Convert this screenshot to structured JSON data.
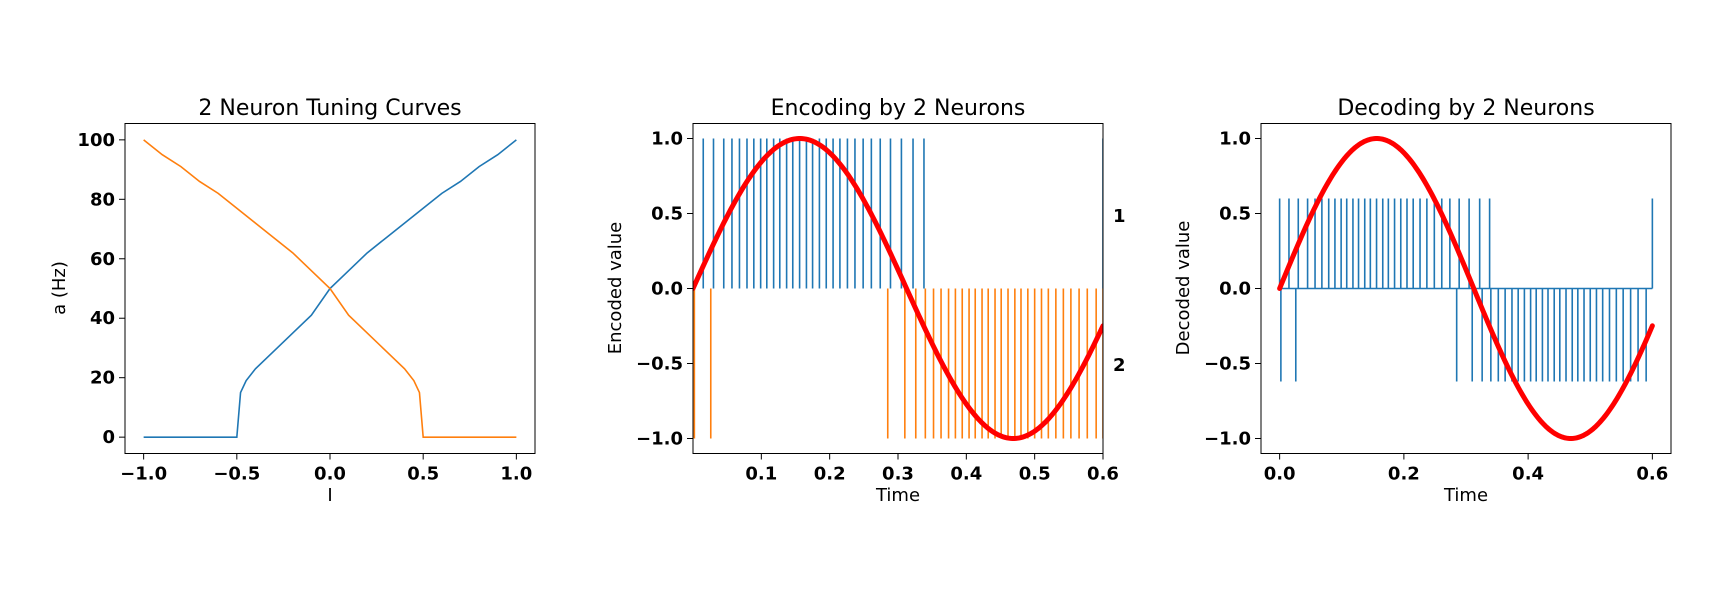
{
  "colors": {
    "neuron1": "#1f77b4",
    "neuron2": "#ff7f0e",
    "signal": "#ff0000"
  },
  "chart_data": [
    {
      "type": "line",
      "title": "2 Neuron Tuning Curves",
      "xlabel": "I",
      "ylabel": "a (Hz)",
      "xlim": [
        -1.1,
        1.1
      ],
      "ylim": [
        -5.5,
        105.5
      ],
      "xticks": [
        -1.0,
        -0.5,
        0.0,
        0.5,
        1.0
      ],
      "xtick_labels": [
        "−1.0",
        "−0.5",
        "0.0",
        "0.5",
        "1.0"
      ],
      "yticks": [
        0,
        20,
        40,
        60,
        80,
        100
      ],
      "ytick_labels": [
        "0",
        "20",
        "40",
        "60",
        "80",
        "100"
      ],
      "grid": false,
      "series": [
        {
          "color": "#1f77b4",
          "x": [
            -1.0,
            -0.5,
            -0.48,
            -0.45,
            -0.4,
            -0.3,
            -0.2,
            -0.1,
            0.0,
            0.1,
            0.2,
            0.3,
            0.4,
            0.5,
            0.6,
            0.7,
            0.8,
            0.9,
            1.0
          ],
          "y": [
            0,
            0,
            15,
            19,
            23,
            29,
            35,
            41,
            50,
            56,
            62,
            67,
            72,
            77,
            82,
            86,
            91,
            95,
            100
          ]
        },
        {
          "color": "#ff7f0e",
          "x": [
            -1.0,
            -0.9,
            -0.8,
            -0.7,
            -0.6,
            -0.5,
            -0.4,
            -0.3,
            -0.2,
            -0.1,
            0.0,
            0.1,
            0.2,
            0.3,
            0.4,
            0.45,
            0.48,
            0.5,
            1.0
          ],
          "y": [
            100,
            95,
            91,
            86,
            82,
            77,
            72,
            67,
            62,
            56,
            50,
            41,
            35,
            29,
            23,
            19,
            15,
            0,
            0
          ]
        }
      ]
    },
    {
      "type": "line",
      "title": "Encoding by 2 Neurons",
      "xlabel": "Time",
      "ylabel": "Encoded value",
      "xlim": [
        0.0,
        0.6
      ],
      "ylim": [
        -1.1,
        1.1
      ],
      "xticks": [
        0.1,
        0.2,
        0.3,
        0.4,
        0.5,
        0.6
      ],
      "xtick_labels": [
        "0.1",
        "0.2",
        "0.3",
        "0.4",
        "0.5",
        "0.6"
      ],
      "yticks": [
        -1.0,
        -0.5,
        0.0,
        0.5,
        1.0
      ],
      "ytick_labels": [
        "−1.0",
        "−0.5",
        "0.0",
        "0.5",
        "1.0"
      ],
      "right_labels": [
        {
          "text": "1",
          "y": 0.5
        },
        {
          "text": "2",
          "y": -0.5
        }
      ],
      "grid": false,
      "signal": {
        "color": "#ff0000",
        "function": "sin",
        "frequency_hz": 1.6,
        "amplitude": 1.0
      },
      "spikes": [
        {
          "color": "#1f77b4",
          "y_from": 0.0,
          "y_to": 1.0,
          "times": [
            0.015,
            0.03,
            0.045,
            0.057,
            0.068,
            0.079,
            0.089,
            0.099,
            0.108,
            0.118,
            0.127,
            0.137,
            0.146,
            0.156,
            0.166,
            0.175,
            0.185,
            0.195,
            0.205,
            0.215,
            0.226,
            0.237,
            0.249,
            0.261,
            0.274,
            0.289,
            0.305,
            0.322,
            0.338,
            0.6
          ]
        },
        {
          "color": "#ff7f0e",
          "y_from": 0.0,
          "y_to": -1.0,
          "times": [
            0.002,
            0.026,
            0.285,
            0.31,
            0.326,
            0.34,
            0.352,
            0.363,
            0.374,
            0.384,
            0.394,
            0.404,
            0.413,
            0.423,
            0.432,
            0.442,
            0.451,
            0.461,
            0.471,
            0.48,
            0.49,
            0.5,
            0.51,
            0.52,
            0.531,
            0.542,
            0.553,
            0.565,
            0.577,
            0.59,
            0.6
          ]
        }
      ]
    },
    {
      "type": "line",
      "title": "Decoding by 2 Neurons",
      "xlabel": "Time",
      "ylabel": "Decoded value",
      "xlim": [
        -0.03,
        0.63
      ],
      "ylim": [
        -1.1,
        1.1
      ],
      "xticks": [
        0.0,
        0.2,
        0.4,
        0.6
      ],
      "xtick_labels": [
        "0.0",
        "0.2",
        "0.4",
        "0.6"
      ],
      "yticks": [
        -1.0,
        -0.5,
        0.0,
        0.5,
        1.0
      ],
      "ytick_labels": [
        "−1.0",
        "−0.5",
        "0.0",
        "0.5",
        "1.0"
      ],
      "grid": false,
      "signal": {
        "color": "#ff0000",
        "function": "sin",
        "frequency_hz": 1.6,
        "amplitude": 1.0
      },
      "spikes": [
        {
          "color": "#1f77b4",
          "y_from": 0.0,
          "y_to": 0.6,
          "times": [
            0.0,
            0.015,
            0.03,
            0.045,
            0.057,
            0.068,
            0.079,
            0.089,
            0.099,
            0.108,
            0.118,
            0.127,
            0.137,
            0.146,
            0.156,
            0.166,
            0.175,
            0.185,
            0.195,
            0.205,
            0.215,
            0.226,
            0.237,
            0.249,
            0.261,
            0.274,
            0.289,
            0.305,
            0.322,
            0.338,
            0.6
          ]
        },
        {
          "color": "#1f77b4",
          "y_from": 0.0,
          "y_to": -0.62,
          "times": [
            0.002,
            0.026,
            0.285,
            0.31,
            0.326,
            0.34,
            0.352,
            0.363,
            0.374,
            0.384,
            0.394,
            0.404,
            0.413,
            0.423,
            0.432,
            0.442,
            0.451,
            0.461,
            0.471,
            0.48,
            0.49,
            0.5,
            0.51,
            0.52,
            0.531,
            0.542,
            0.553,
            0.565,
            0.577,
            0.59
          ]
        }
      ]
    }
  ]
}
